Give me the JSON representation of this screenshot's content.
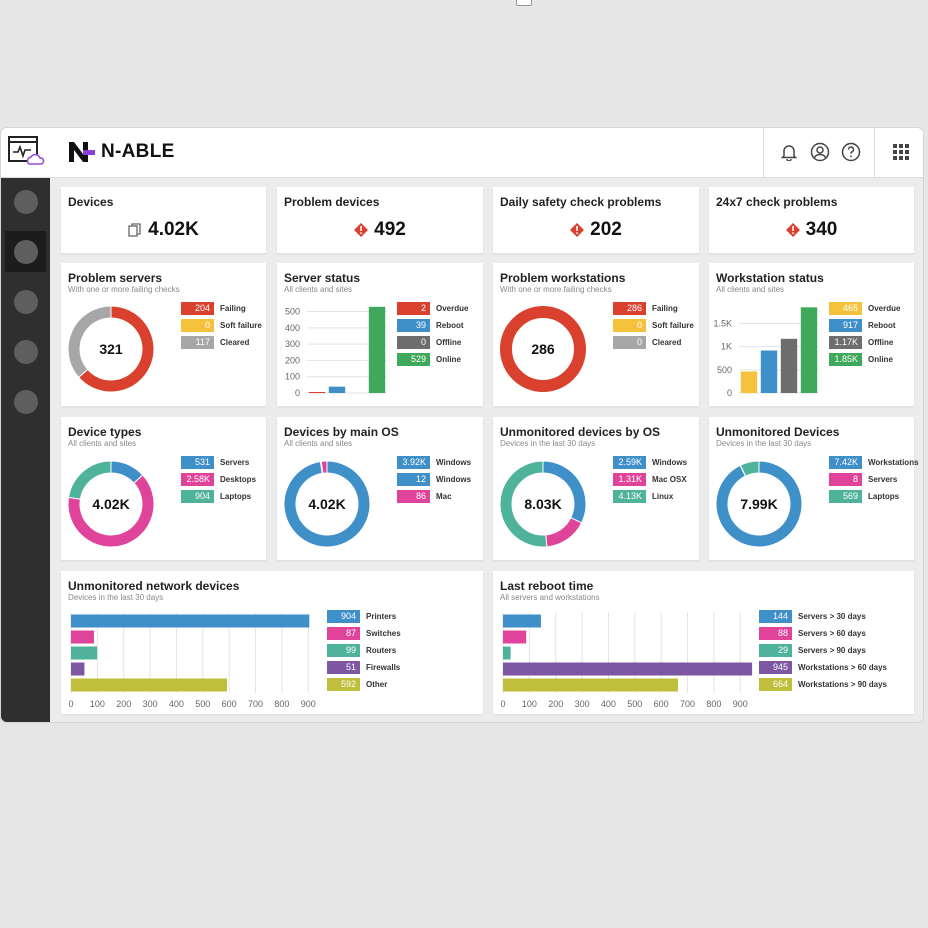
{
  "brand": {
    "name": "N-ABLE"
  },
  "colors": {
    "red": "#d9412e",
    "yellow": "#f5c33b",
    "gray": "#a7a7a7",
    "blue": "#3f8fc8",
    "darkgray": "#6d6d6d",
    "green": "#3fa85a",
    "pink": "#e0439a",
    "teal": "#4fb39b",
    "purple": "#7d56a4",
    "olive": "#c0bf3c",
    "lightblue": "#5a9ad6",
    "magenta": "#e0439a"
  },
  "header": {
    "icons": [
      "bell-icon",
      "user-icon",
      "help-icon",
      "apps-grid-icon"
    ]
  },
  "kpis": [
    {
      "title": "Devices",
      "value": "4.02K",
      "icon": "copy-icon"
    },
    {
      "title": "Problem devices",
      "value": "492",
      "icon": "alert-icon"
    },
    {
      "title": "Daily safety check problems",
      "value": "202",
      "icon": "alert-icon"
    },
    {
      "title": "24x7 check problems",
      "value": "340",
      "icon": "alert-icon"
    }
  ],
  "problem_servers": {
    "title": "Problem servers",
    "subtitle": "With one or more failing checks",
    "center": "321",
    "legend": [
      {
        "value": "204",
        "label": "Failing",
        "color": "#d9412e"
      },
      {
        "value": "0",
        "label": "Soft failure",
        "color": "#f5c33b"
      },
      {
        "value": "117",
        "label": "Cleared",
        "color": "#a7a7a7"
      }
    ]
  },
  "server_status": {
    "title": "Server status",
    "subtitle": "All clients and sites",
    "legend": [
      {
        "value": "2",
        "label": "Overdue",
        "color": "#d9412e"
      },
      {
        "value": "39",
        "label": "Reboot",
        "color": "#3f8fc8"
      },
      {
        "value": "0",
        "label": "Offline",
        "color": "#6d6d6d"
      },
      {
        "value": "529",
        "label": "Online",
        "color": "#3fa85a"
      }
    ]
  },
  "problem_workstations": {
    "title": "Problem workstations",
    "subtitle": "With one or more failing checks",
    "center": "286",
    "legend": [
      {
        "value": "286",
        "label": "Failing",
        "color": "#d9412e"
      },
      {
        "value": "0",
        "label": "Soft failure",
        "color": "#f5c33b"
      },
      {
        "value": "0",
        "label": "Cleared",
        "color": "#a7a7a7"
      }
    ]
  },
  "workstation_status": {
    "title": "Workstation status",
    "subtitle": "All clients and sites",
    "legend": [
      {
        "value": "465",
        "label": "Overdue",
        "color": "#f5c33b"
      },
      {
        "value": "917",
        "label": "Reboot",
        "color": "#3f8fc8"
      },
      {
        "value": "1.17K",
        "label": "Offline",
        "color": "#6d6d6d"
      },
      {
        "value": "1.85K",
        "label": "Online",
        "color": "#3fa85a"
      }
    ]
  },
  "device_types": {
    "title": "Device types",
    "subtitle": "All clients and sites",
    "center": "4.02K",
    "legend": [
      {
        "value": "531",
        "label": "Servers",
        "color": "#3f8fc8"
      },
      {
        "value": "2.58K",
        "label": "Desktops",
        "color": "#e0439a"
      },
      {
        "value": "904",
        "label": "Laptops",
        "color": "#4fb39b"
      }
    ]
  },
  "devices_by_os": {
    "title": "Devices by main OS",
    "subtitle": "All clients and sites",
    "center": "4.02K",
    "legend": [
      {
        "value": "3.92K",
        "label": "Windows",
        "color": "#3f8fc8"
      },
      {
        "value": "12",
        "label": "Windows",
        "color": "#3f8fc8"
      },
      {
        "value": "86",
        "label": "Mac",
        "color": "#e0439a"
      }
    ]
  },
  "unmonitored_by_os": {
    "title": "Unmonitored devices by OS",
    "subtitle": "Devices in the last 30 days",
    "center": "8.03K",
    "legend": [
      {
        "value": "2.59K",
        "label": "Windows",
        "color": "#3f8fc8"
      },
      {
        "value": "1.31K",
        "label": "Mac OSX",
        "color": "#e0439a"
      },
      {
        "value": "4.13K",
        "label": "Linux",
        "color": "#4fb39b"
      }
    ]
  },
  "unmonitored_devices": {
    "title": "Unmonitored Devices",
    "subtitle": "Devices in the last 30 days",
    "center": "7.99K",
    "legend": [
      {
        "value": "7.42K",
        "label": "Workstations",
        "color": "#3f8fc8"
      },
      {
        "value": "8",
        "label": "Servers",
        "color": "#e0439a"
      },
      {
        "value": "569",
        "label": "Laptops",
        "color": "#4fb39b"
      }
    ]
  },
  "unmonitored_network": {
    "title": "Unmonitored network devices",
    "subtitle": "Devices in the last 30 days",
    "legend": [
      {
        "value": "904",
        "label": "Printers",
        "color": "#3f8fc8"
      },
      {
        "value": "87",
        "label": "Switches",
        "color": "#e0439a"
      },
      {
        "value": "99",
        "label": "Routers",
        "color": "#4fb39b"
      },
      {
        "value": "51",
        "label": "Firewalls",
        "color": "#7d56a4"
      },
      {
        "value": "592",
        "label": "Other",
        "color": "#c0bf3c"
      }
    ]
  },
  "last_reboot": {
    "title": "Last reboot time",
    "subtitle": "All servers and workstations",
    "legend": [
      {
        "value": "144",
        "label": "Servers > 30 days",
        "color": "#3f8fc8"
      },
      {
        "value": "88",
        "label": "Servers > 60 days",
        "color": "#e0439a"
      },
      {
        "value": "29",
        "label": "Servers > 90 days",
        "color": "#4fb39b"
      },
      {
        "value": "945",
        "label": "Workstations > 60 days",
        "color": "#7d56a4"
      },
      {
        "value": "664",
        "label": "Workstations > 90 days",
        "color": "#c0bf3c"
      }
    ]
  },
  "chart_data": [
    {
      "type": "pie",
      "title": "Problem servers",
      "categories": [
        "Failing",
        "Soft failure",
        "Cleared"
      ],
      "values": [
        204,
        0,
        117
      ],
      "colors": [
        "#d9412e",
        "#f5c33b",
        "#a7a7a7"
      ]
    },
    {
      "type": "bar",
      "title": "Server status",
      "categories": [
        "Overdue",
        "Reboot",
        "Offline",
        "Online"
      ],
      "values": [
        2,
        39,
        0,
        529
      ],
      "colors": [
        "#d9412e",
        "#3f8fc8",
        "#6d6d6d",
        "#3fa85a"
      ],
      "yticks": [
        "0",
        "100",
        "200",
        "300",
        "400",
        "500"
      ],
      "ylim": [
        0,
        540
      ]
    },
    {
      "type": "pie",
      "title": "Problem workstations",
      "categories": [
        "Failing",
        "Soft failure",
        "Cleared"
      ],
      "values": [
        286,
        0,
        0
      ],
      "colors": [
        "#d9412e",
        "#f5c33b",
        "#a7a7a7"
      ]
    },
    {
      "type": "bar",
      "title": "Workstation status",
      "categories": [
        "Overdue",
        "Reboot",
        "Offline",
        "Online"
      ],
      "values": [
        465,
        917,
        1170,
        1850
      ],
      "colors": [
        "#f5c33b",
        "#3f8fc8",
        "#6d6d6d",
        "#3fa85a"
      ],
      "yticks": [
        "0",
        "500",
        "1K",
        "1.5K"
      ],
      "ytick_values": [
        0,
        500,
        1000,
        1500
      ],
      "ylim": [
        0,
        1900
      ]
    },
    {
      "type": "pie",
      "title": "Device types",
      "categories": [
        "Servers",
        "Desktops",
        "Laptops"
      ],
      "values": [
        531,
        2580,
        904
      ],
      "colors": [
        "#3f8fc8",
        "#e0439a",
        "#4fb39b"
      ]
    },
    {
      "type": "pie",
      "title": "Devices by main OS",
      "categories": [
        "Windows",
        "Windows",
        "Mac"
      ],
      "values": [
        3920,
        12,
        86
      ],
      "colors": [
        "#3f8fc8",
        "#3f8fc8",
        "#e0439a"
      ]
    },
    {
      "type": "pie",
      "title": "Unmonitored devices by OS",
      "categories": [
        "Windows",
        "Mac OSX",
        "Linux"
      ],
      "values": [
        2590,
        1310,
        4130
      ],
      "colors": [
        "#3f8fc8",
        "#e0439a",
        "#4fb39b"
      ]
    },
    {
      "type": "pie",
      "title": "Unmonitored Devices",
      "categories": [
        "Workstations",
        "Servers",
        "Laptops"
      ],
      "values": [
        7420,
        8,
        569
      ],
      "colors": [
        "#3f8fc8",
        "#e0439a",
        "#4fb39b"
      ]
    },
    {
      "type": "bar",
      "orientation": "horizontal",
      "title": "Unmonitored network devices",
      "categories": [
        "Printers",
        "Switches",
        "Routers",
        "Firewalls",
        "Other"
      ],
      "values": [
        904,
        87,
        99,
        51,
        592
      ],
      "colors": [
        "#3f8fc8",
        "#e0439a",
        "#4fb39b",
        "#7d56a4",
        "#c0bf3c"
      ],
      "xticks": [
        "0",
        "100",
        "200",
        "300",
        "400",
        "500",
        "600",
        "700",
        "800",
        "900"
      ],
      "xlim": [
        0,
        900
      ]
    },
    {
      "type": "bar",
      "orientation": "horizontal",
      "title": "Last reboot time",
      "categories": [
        "Servers > 30 days",
        "Servers > 60 days",
        "Servers > 90 days",
        "Workstations > 60 days",
        "Workstations > 90 days"
      ],
      "values": [
        144,
        88,
        29,
        945,
        664
      ],
      "colors": [
        "#3f8fc8",
        "#e0439a",
        "#4fb39b",
        "#7d56a4",
        "#c0bf3c"
      ],
      "xticks": [
        "0",
        "100",
        "200",
        "300",
        "400",
        "500",
        "600",
        "700",
        "800",
        "900"
      ],
      "xlim": [
        0,
        945
      ]
    }
  ]
}
